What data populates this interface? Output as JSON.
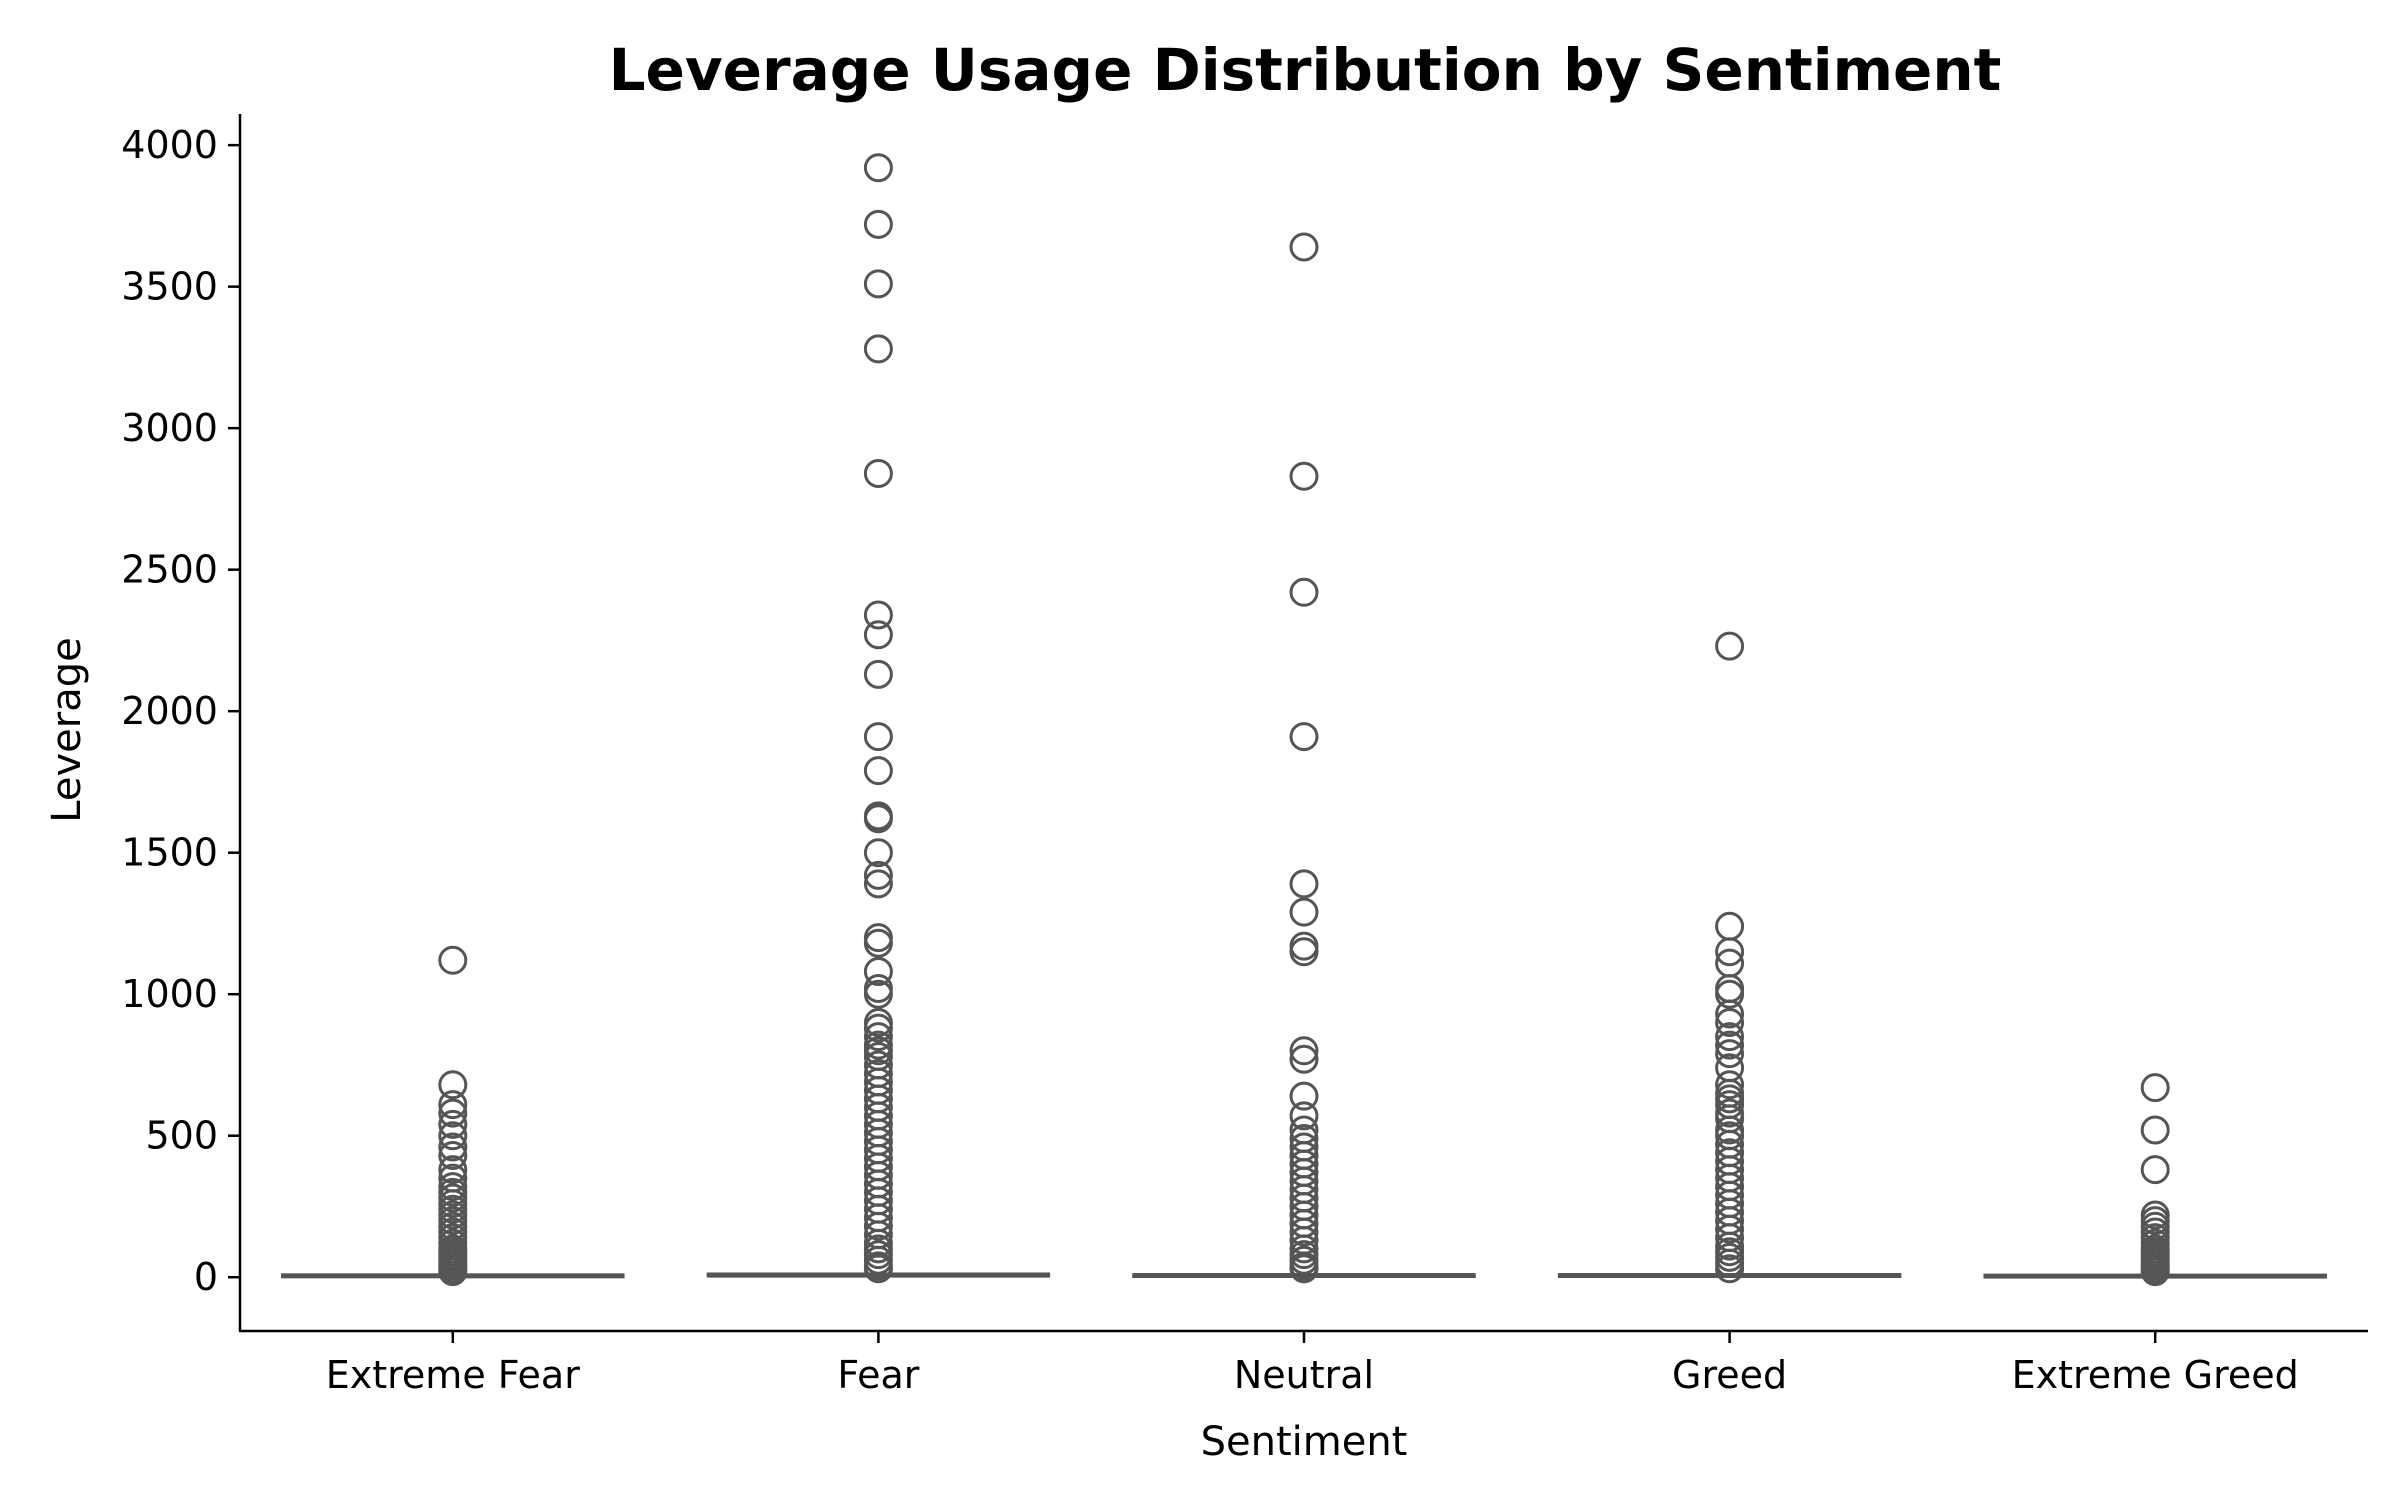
{
  "chart_data": {
    "type": "box",
    "title": "Leverage Usage Distribution by Sentiment",
    "xlabel": "Sentiment",
    "ylabel": "Leverage",
    "ylim": [
      -190,
      4110
    ],
    "yticks": [
      0,
      500,
      1000,
      1500,
      2000,
      2500,
      3000,
      3500,
      4000
    ],
    "grid": false,
    "colors": {
      "box_edge": "#555555",
      "box_fill": "#777777",
      "axis": "#000000"
    },
    "categories": [
      "Extreme Fear",
      "Fear",
      "Neutral",
      "Greed",
      "Extreme Greed"
    ],
    "boxes": [
      {
        "category": "Extreme Fear",
        "whisker_low": 0,
        "q1": 1,
        "median": 2,
        "q3": 5,
        "whisker_high": 12,
        "outliers": [
          1120,
          680,
          610,
          580,
          540,
          500,
          460,
          430,
          380,
          350,
          320,
          300,
          280,
          260,
          240,
          220,
          200,
          180,
          160,
          140,
          120,
          100,
          90,
          80,
          70,
          60,
          50,
          40,
          30,
          20
        ]
      },
      {
        "category": "Fear",
        "whisker_low": 0,
        "q1": 2,
        "median": 4,
        "q3": 8,
        "whisker_high": 18,
        "outliers": [
          3920,
          3720,
          3510,
          3280,
          2840,
          2340,
          2270,
          2130,
          1910,
          1790,
          1630,
          1620,
          1500,
          1420,
          1390,
          1200,
          1180,
          1080,
          1020,
          1000,
          900,
          880,
          850,
          820,
          800,
          780,
          750,
          720,
          690,
          660,
          630,
          600,
          570,
          540,
          510,
          480,
          450,
          420,
          390,
          360,
          330,
          300,
          270,
          240,
          210,
          180,
          150,
          120,
          100,
          80,
          60,
          40,
          30
        ]
      },
      {
        "category": "Neutral",
        "whisker_low": 0,
        "q1": 1,
        "median": 3,
        "q3": 6,
        "whisker_high": 14,
        "outliers": [
          3640,
          2830,
          2420,
          1910,
          1390,
          1290,
          1170,
          1150,
          800,
          770,
          640,
          570,
          520,
          490,
          460,
          430,
          400,
          370,
          340,
          310,
          280,
          250,
          220,
          190,
          160,
          130,
          100,
          80,
          60,
          40,
          30
        ]
      },
      {
        "category": "Greed",
        "whisker_low": 0,
        "q1": 1,
        "median": 3,
        "q3": 6,
        "whisker_high": 14,
        "outliers": [
          2230,
          1240,
          1150,
          1110,
          1020,
          1000,
          930,
          900,
          850,
          820,
          790,
          740,
          680,
          650,
          630,
          610,
          580,
          560,
          520,
          500,
          470,
          440,
          410,
          380,
          350,
          320,
          290,
          260,
          230,
          200,
          170,
          140,
          110,
          90,
          70,
          50,
          30
        ]
      },
      {
        "category": "Extreme Greed",
        "whisker_low": 0,
        "q1": 1,
        "median": 2,
        "q3": 4,
        "whisker_high": 10,
        "outliers": [
          670,
          520,
          380,
          220,
          200,
          180,
          160,
          140,
          120,
          100,
          90,
          80,
          70,
          60,
          50,
          40,
          30,
          20
        ]
      }
    ]
  }
}
